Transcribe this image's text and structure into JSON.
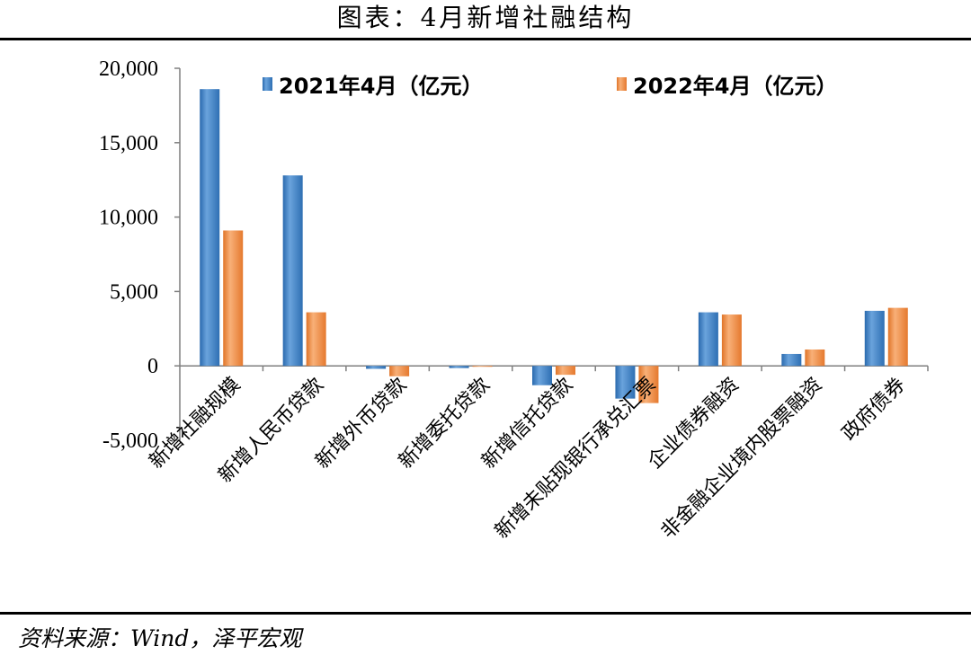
{
  "header": {
    "title": "图表：4月新增社融结构"
  },
  "footer": {
    "source": "资料来源：Wind，泽平宏观"
  },
  "chart_data": {
    "type": "bar",
    "title": "",
    "xlabel": "",
    "ylabel": "",
    "ylim": [
      -5000,
      20000
    ],
    "yticks": [
      20000,
      15000,
      10000,
      5000,
      0,
      -5000
    ],
    "ytick_labels": [
      "20,000",
      "15,000",
      "10,000",
      "5,000",
      "0",
      "-5,000"
    ],
    "grid": false,
    "legend_position": "top",
    "categories": [
      "新增社融规模",
      "新增人民币贷款",
      "新增外币贷款",
      "新增委托贷款",
      "新增信托贷款",
      "新增未贴现银行承兑汇票",
      "企业债券融资",
      "非金融企业境内股票融资",
      "政府债券"
    ],
    "series": [
      {
        "name": "2021年4月（亿元）",
        "color": "#3a7dc2",
        "values": [
          18600,
          12800,
          -200,
          -150,
          -1300,
          -2200,
          3600,
          800,
          3700
        ]
      },
      {
        "name": "2022年4月（亿元）",
        "color": "#f08c3c",
        "values": [
          9100,
          3600,
          -700,
          -30,
          -600,
          -2500,
          3450,
          1100,
          3900
        ]
      }
    ]
  }
}
